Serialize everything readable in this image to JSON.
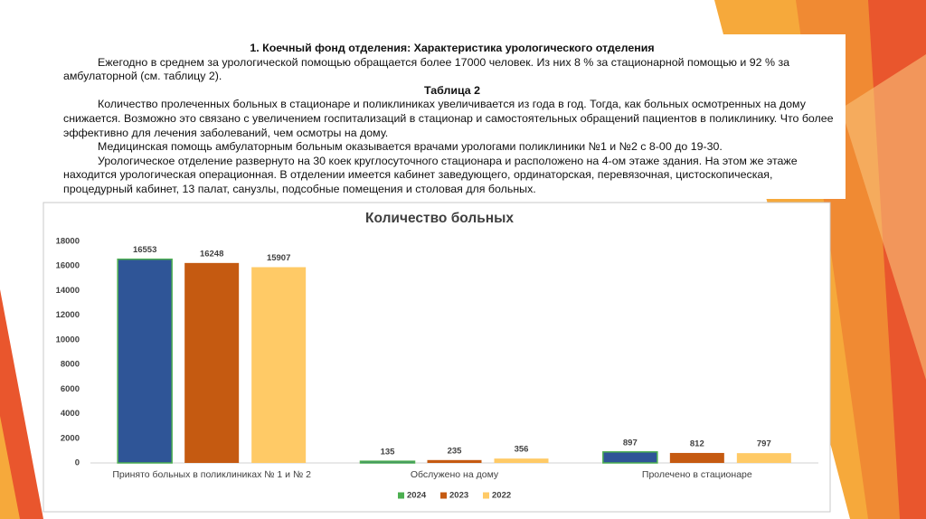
{
  "document": {
    "heading": "1. Коечный фонд отделения: Характеристика урологического  отделения",
    "paragraph_1": "Ежегодно в среднем за урологической помощью  обращается более  17000 человек. Из них 8 % за стационарной помощью и 92 % за амбулаторной (см. таблицу 2).",
    "table_caption": "Таблица 2",
    "paragraph_2": "Количество пролеченных больных в стационаре и поликлиниках увеличивается из года в год. Тогда, как больных осмотренных на дому снижается. Возможно это связано с увеличением госпитализаций в стационар и самостоятельных обращений пациентов в поликлинику. Что более эффективно для лечения заболеваний, чем осмотры на дому.",
    "paragraph_3": "Медицинская помощь амбулаторным больным оказывается врачами урологами поликлиники №1 и №2  с 8-00 до 19-30.",
    "paragraph_4": "Урологическое отделение развернуто на 30 коек круглосуточного стационара и расположено на 4-ом этаже здания. На этом же этаже находится урологическая операционная. В отделении имеется кабинет заведующего, ординаторская, перевязочная, цистоскопическая, процедурный кабинет, 13 палат,  санузлы, подсобные помещения и столовая для больных."
  },
  "chart_data": {
    "type": "bar",
    "title": "Количество больных",
    "categories": [
      "Принято больных в поликлиниках № 1 и № 2",
      "Обслужено на дому",
      "Пролечено в стационаре"
    ],
    "series": [
      {
        "name": "2024",
        "color": "#2f5597",
        "edge_color": "#4caf50",
        "values": [
          16553,
          135,
          897
        ]
      },
      {
        "name": "2023",
        "color": "#c55a11",
        "values": [
          16248,
          235,
          812
        ]
      },
      {
        "name": "2022",
        "color": "#ffca66",
        "values": [
          15907,
          356,
          797
        ]
      }
    ],
    "ylim": [
      0,
      18000
    ],
    "yticks": [
      0,
      2000,
      4000,
      6000,
      8000,
      10000,
      12000,
      14000,
      16000,
      18000
    ],
    "grid": false,
    "legend": "bottom"
  }
}
